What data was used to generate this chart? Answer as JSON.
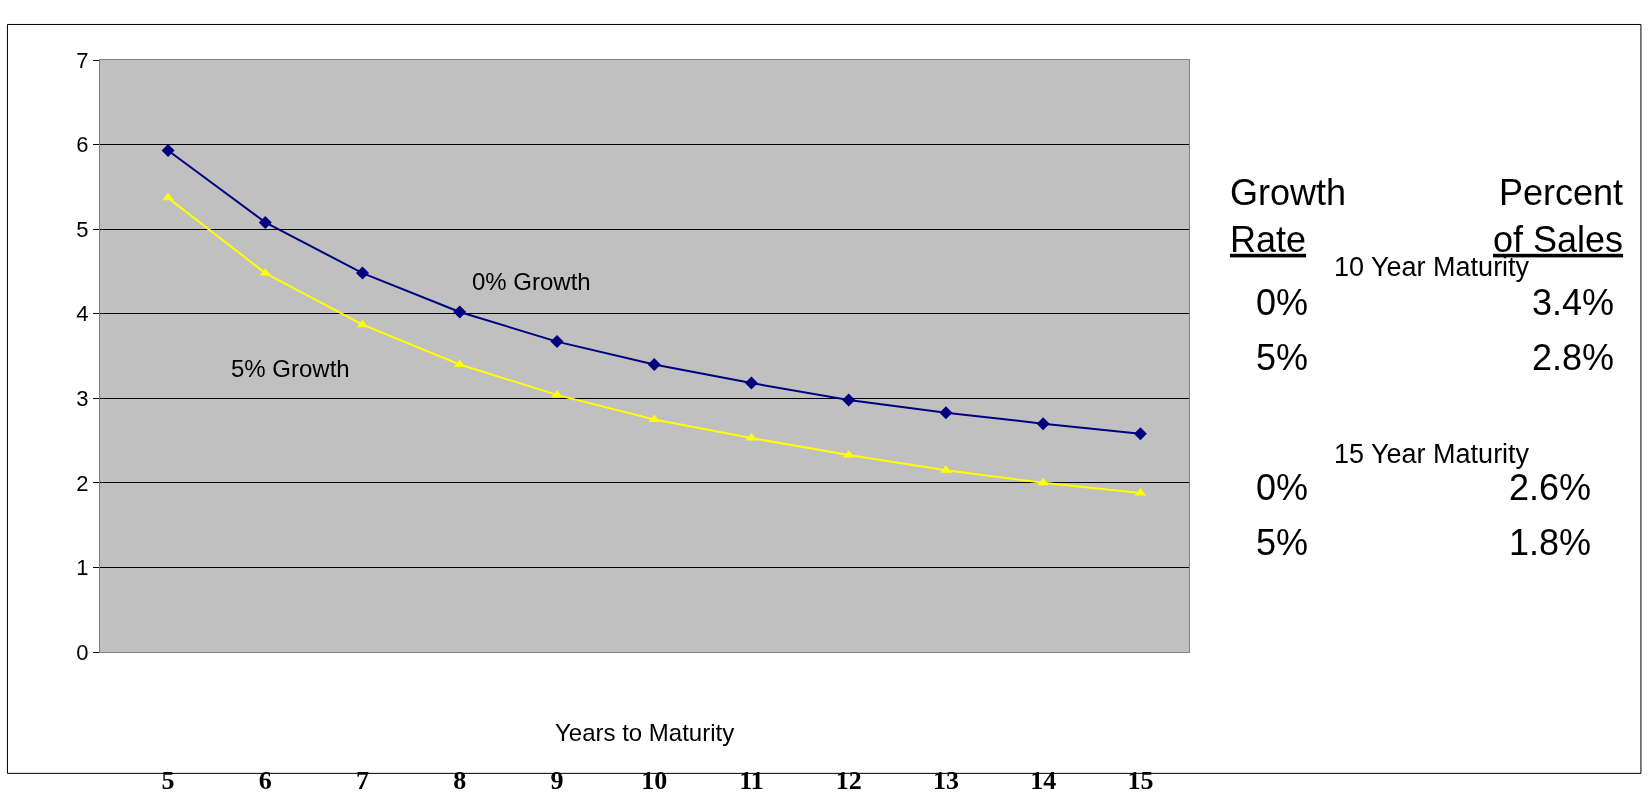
{
  "chart_data": {
    "type": "line",
    "xlabel": "Years to Maturity",
    "categories": [
      "5",
      "6",
      "7",
      "8",
      "9",
      "10",
      "11",
      "12",
      "13",
      "14",
      "15"
    ],
    "series": [
      {
        "name": "0% Growth",
        "color": "#000080",
        "marker": "diamond",
        "values": [
          5.93,
          5.08,
          4.48,
          4.02,
          3.67,
          3.4,
          3.18,
          2.98,
          2.83,
          2.7,
          2.58
        ]
      },
      {
        "name": "5% Growth",
        "color": "#ffff00",
        "marker": "triangle",
        "values": [
          5.37,
          4.48,
          3.87,
          3.4,
          3.04,
          2.75,
          2.53,
          2.33,
          2.15,
          2.0,
          1.88
        ]
      }
    ],
    "ylim": [
      0,
      7
    ],
    "yticks": [
      0,
      1,
      2,
      3,
      4,
      5,
      6,
      7
    ],
    "grid": "y",
    "legend": false,
    "line_style": "solid",
    "annotations": [
      "Growth Rate",
      "Percent of Sales",
      "10 Year Maturity",
      "0%",
      "3.4%",
      "5%",
      "2.8%",
      "15 Year Maturity",
      "0%",
      "2.6%",
      "5%",
      "1.8%"
    ]
  }
}
